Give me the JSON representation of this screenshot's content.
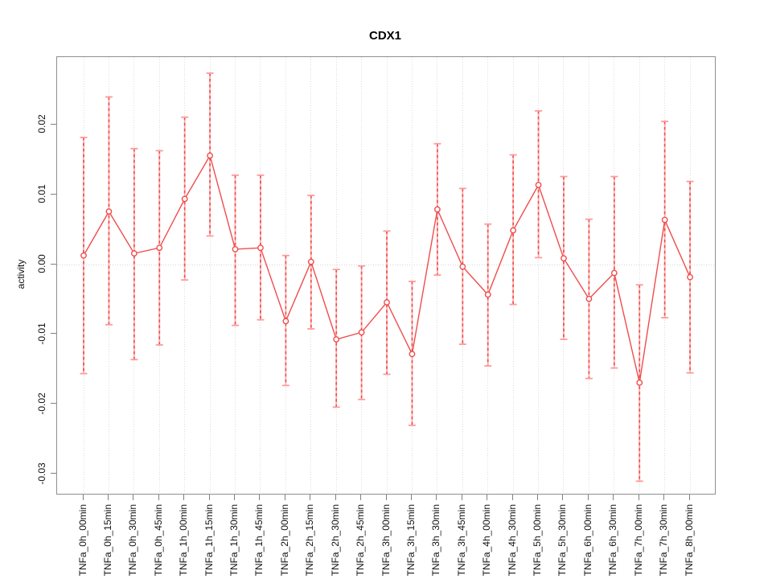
{
  "title": "CDX1",
  "chart_data": {
    "type": "line",
    "subtype": "points-with-error-bars",
    "title": "CDX1",
    "xlabel": "",
    "ylabel": "activity",
    "legend": "none",
    "grid": true,
    "zero_reference_line": true,
    "ylim": [
      -0.0328,
      0.0297
    ],
    "yticks": [
      "0.02",
      "0.01",
      "0.00",
      "-0.01",
      "-0.02",
      "-0.03"
    ],
    "categories": [
      "TNFa_0h_00min",
      "TNFa_0h_15min",
      "TNFa_0h_30min",
      "TNFa_0h_45min",
      "TNFa_1h_00min",
      "TNFa_1h_15min",
      "TNFa_1h_30min",
      "TNFa_1h_45min",
      "TNFa_2h_00min",
      "TNFa_2h_15min",
      "TNFa_2h_30min",
      "TNFa_2h_45min",
      "TNFa_3h_00min",
      "TNFa_3h_15min",
      "TNFa_3h_30min",
      "TNFa_3h_45min",
      "TNFa_4h_00min",
      "TNFa_4h_30min",
      "TNFa_5h_00min",
      "TNFa_5h_30min",
      "TNFa_6h_00min",
      "TNFa_6h_30min",
      "TNFa_7h_00min",
      "TNFa_7h_30min",
      "TNFa_8h_00min"
    ],
    "series": [
      {
        "name": "activity",
        "values": [
          0.0013,
          0.0076,
          0.0016,
          0.0024,
          0.0094,
          0.0156,
          0.0022,
          0.0024,
          -0.0081,
          0.0004,
          -0.0107,
          -0.0097,
          -0.0054,
          -0.0128,
          0.0079,
          -0.0003,
          -0.0043,
          0.0049,
          0.0114,
          0.0009,
          -0.0049,
          -0.0012,
          -0.0169,
          0.0064,
          -0.0018
        ],
        "upper": [
          0.0182,
          0.024,
          0.0166,
          0.0163,
          0.0211,
          0.0274,
          0.0128,
          0.0128,
          0.0013,
          0.0099,
          -0.0007,
          -0.0002,
          0.0048,
          -0.0024,
          0.0173,
          0.0109,
          0.0058,
          0.0157,
          0.022,
          0.0126,
          0.0065,
          0.0126,
          -0.0029,
          0.0205,
          0.0119
        ],
        "lower": [
          -0.0156,
          -0.0086,
          -0.0136,
          -0.0115,
          -0.0022,
          0.0041,
          -0.0087,
          -0.0079,
          -0.0173,
          -0.0092,
          -0.0204,
          -0.0193,
          -0.0157,
          -0.023,
          -0.0015,
          -0.0114,
          -0.0145,
          -0.0057,
          0.001,
          -0.0107,
          -0.0163,
          -0.0148,
          -0.031,
          -0.0076,
          -0.0155
        ]
      }
    ],
    "colors": {
      "line": "#f04c4c",
      "marker": "#f04c4c",
      "error_bar_fill": "#ffabab",
      "error_bar_dash": "#f04c4c",
      "error_cap": "#ff9a9a",
      "grid": "#dcdcdc",
      "axis": "#8f8f8f"
    }
  }
}
